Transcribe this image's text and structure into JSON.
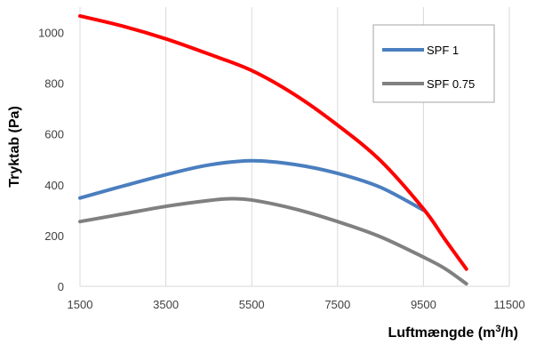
{
  "chart_data": {
    "type": "line",
    "xlabel": "Luftmængde (m",
    "xlabel_sup": "3",
    "xlabel_tail": "/h)",
    "ylabel": "Tryktab (Pa)",
    "xlim": [
      1500,
      11500
    ],
    "ylim": [
      0,
      1100
    ],
    "x_ticks": [
      1500,
      3500,
      5500,
      7500,
      9500,
      11500
    ],
    "y_ticks": [
      0,
      200,
      400,
      600,
      800,
      1000
    ],
    "grid": "vertical",
    "legend_position": "top-right",
    "series": [
      {
        "name": "",
        "color": "#ff0000",
        "points": [
          [
            1500,
            1065
          ],
          [
            2500,
            1025
          ],
          [
            3500,
            975
          ],
          [
            4500,
            915
          ],
          [
            5500,
            850
          ],
          [
            6500,
            755
          ],
          [
            7500,
            635
          ],
          [
            8500,
            495
          ],
          [
            9500,
            305
          ],
          [
            10000,
            185
          ],
          [
            10500,
            68
          ]
        ]
      },
      {
        "name": "SPF 1",
        "color": "#4a7ebf",
        "points": [
          [
            1500,
            348
          ],
          [
            2500,
            395
          ],
          [
            3500,
            440
          ],
          [
            4500,
            478
          ],
          [
            5500,
            495
          ],
          [
            6500,
            480
          ],
          [
            7500,
            445
          ],
          [
            8500,
            390
          ],
          [
            9500,
            300
          ]
        ]
      },
      {
        "name": "SPF 0.75",
        "color": "#808080",
        "points": [
          [
            1500,
            255
          ],
          [
            2500,
            285
          ],
          [
            3500,
            315
          ],
          [
            4500,
            338
          ],
          [
            5000,
            345
          ],
          [
            5500,
            340
          ],
          [
            6500,
            305
          ],
          [
            7500,
            255
          ],
          [
            8500,
            195
          ],
          [
            9500,
            115
          ],
          [
            10000,
            70
          ],
          [
            10500,
            10
          ]
        ]
      }
    ]
  }
}
